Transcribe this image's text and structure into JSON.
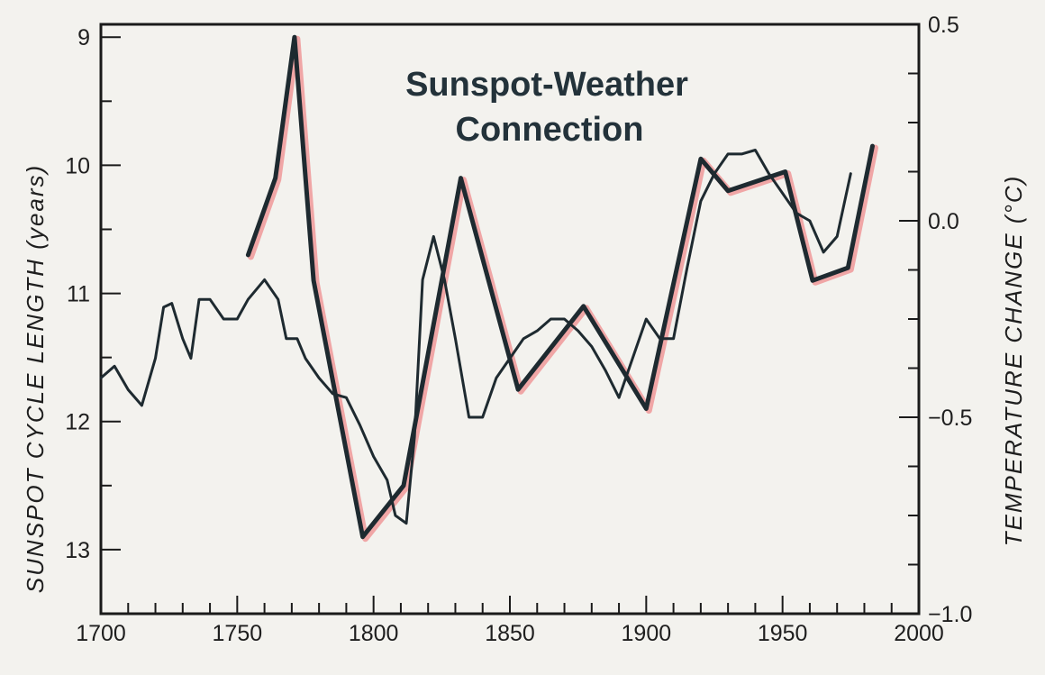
{
  "chart_data": {
    "type": "line",
    "title": [
      "Sunspot-Weather",
      "Connection"
    ],
    "xlabel": "",
    "ylabel_left": "SUNSPOT CYCLE LENGTH (years)",
    "ylabel_right": "TEMPERATURE CHANGE (°C)",
    "x_range": [
      1700,
      2000
    ],
    "y_left_range": [
      13.5,
      8.9
    ],
    "y_right_range": [
      -1.0,
      0.5
    ],
    "y_left_inverted": true,
    "grid": false,
    "x_ticks": [
      1700,
      1750,
      1800,
      1850,
      1900,
      1950,
      2000
    ],
    "x_tick_labels": [
      "1700",
      "1750",
      "1800",
      "1850",
      "1900",
      "1950",
      "2000"
    ],
    "y_left_ticks": [
      9,
      10,
      11,
      12,
      13
    ],
    "y_left_tick_labels": [
      "9",
      "10",
      "11",
      "12",
      "13"
    ],
    "y_right_ticks": [
      0.5,
      0.0,
      -0.5,
      -1.0
    ],
    "y_right_tick_labels": [
      "0.5",
      "0.0",
      "−0.5",
      "−1.0"
    ],
    "colors": {
      "sunspot": "#1e2a30",
      "sunspot_shadow": "#f0a6a6",
      "temperature": "#1e2a30",
      "axis": "#1a1a1a",
      "background": "#f3f2ee"
    },
    "series": [
      {
        "axis": "left",
        "style": "thick",
        "x": [
          1754,
          1764,
          1771,
          1778,
          1796,
          1811,
          1832,
          1853,
          1877,
          1900,
          1920,
          1930,
          1951,
          1961,
          1974,
          1983
        ],
        "values": [
          10.7,
          10.1,
          9.0,
          10.9,
          12.9,
          12.5,
          10.1,
          11.75,
          11.1,
          11.9,
          9.95,
          10.2,
          10.05,
          10.9,
          10.8,
          9.85
        ]
      },
      {
        "axis": "right",
        "style": "thin",
        "x": [
          1700,
          1705,
          1710,
          1715,
          1720,
          1723,
          1726,
          1730,
          1733,
          1736,
          1740,
          1745,
          1750,
          1754,
          1760,
          1765,
          1768,
          1772,
          1775,
          1780,
          1785,
          1790,
          1795,
          1800,
          1805,
          1808,
          1812,
          1815,
          1818,
          1822,
          1826,
          1830,
          1835,
          1840,
          1845,
          1850,
          1855,
          1860,
          1865,
          1870,
          1875,
          1880,
          1885,
          1890,
          1895,
          1900,
          1905,
          1910,
          1915,
          1920,
          1925,
          1930,
          1935,
          1940,
          1945,
          1950,
          1955,
          1960,
          1965,
          1970,
          1975
        ],
        "values": [
          -0.4,
          -0.37,
          -0.43,
          -0.47,
          -0.35,
          -0.22,
          -0.21,
          -0.3,
          -0.35,
          -0.2,
          -0.2,
          -0.25,
          -0.25,
          -0.2,
          -0.15,
          -0.2,
          -0.3,
          -0.3,
          -0.35,
          -0.4,
          -0.44,
          -0.45,
          -0.52,
          -0.6,
          -0.66,
          -0.75,
          -0.77,
          -0.55,
          -0.15,
          -0.04,
          -0.15,
          -0.3,
          -0.5,
          -0.5,
          -0.4,
          -0.35,
          -0.3,
          -0.28,
          -0.25,
          -0.25,
          -0.28,
          -0.32,
          -0.38,
          -0.45,
          -0.35,
          -0.25,
          -0.3,
          -0.3,
          -0.12,
          0.05,
          0.12,
          0.17,
          0.17,
          0.18,
          0.12,
          0.07,
          0.02,
          0.0,
          -0.08,
          -0.04,
          0.12
        ]
      }
    ]
  }
}
